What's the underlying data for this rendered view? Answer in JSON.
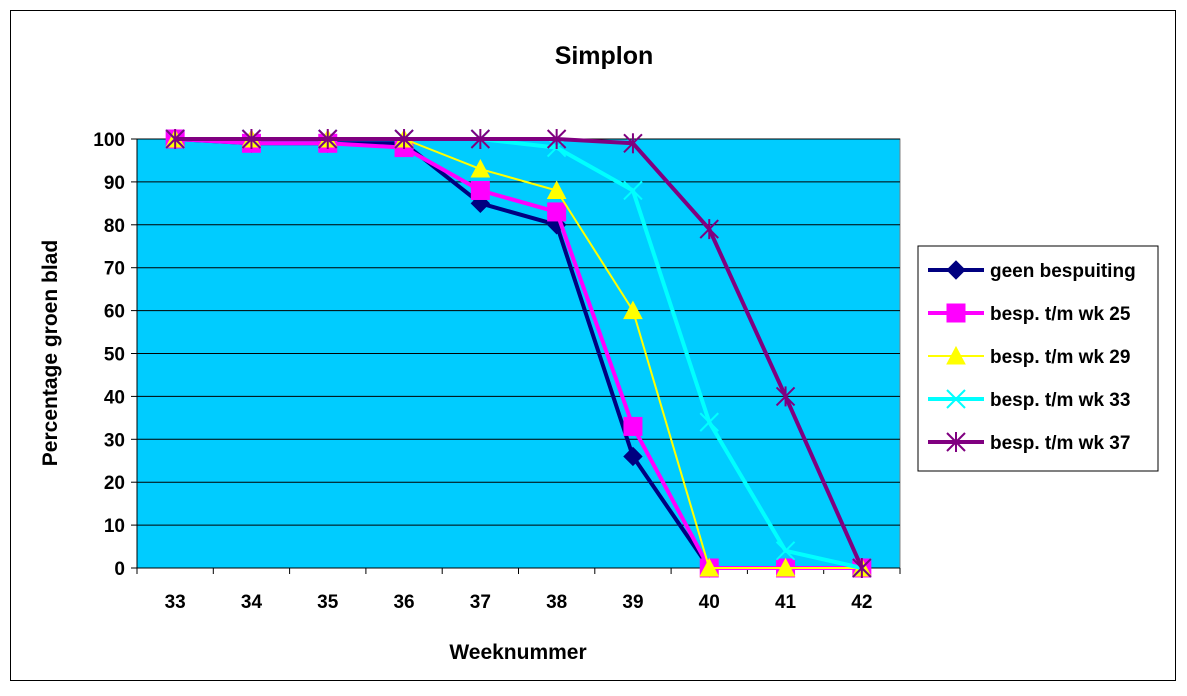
{
  "chart_data": {
    "type": "line",
    "title": "Simplon",
    "xlabel": "Weeknummer",
    "ylabel": "Percentage groen blad",
    "categories": [
      "33",
      "34",
      "35",
      "36",
      "37",
      "38",
      "39",
      "40",
      "41",
      "42"
    ],
    "ylim": [
      0,
      100
    ],
    "yticks": [
      "0",
      "10",
      "20",
      "30",
      "40",
      "50",
      "60",
      "70",
      "80",
      "90",
      "100"
    ],
    "grid": true,
    "legend_position": "right",
    "plot_background": "#00CCFF",
    "series": [
      {
        "name": "geen bespuiting",
        "color": "#000080",
        "marker": "diamond",
        "values": [
          100,
          99,
          99,
          99,
          85,
          80,
          26,
          0,
          null,
          null
        ]
      },
      {
        "name": "besp. t/m wk 25",
        "color": "#FF00FF",
        "marker": "square",
        "values": [
          100,
          99,
          99,
          98,
          88,
          83,
          33,
          0,
          0,
          0
        ]
      },
      {
        "name": "besp. t/m wk 29",
        "color": "#FFFF00",
        "marker": "triangle",
        "values": [
          100,
          100,
          100,
          100,
          93,
          88,
          60,
          0,
          0,
          0
        ]
      },
      {
        "name": "besp. t/m wk 33",
        "color": "#00FFFF",
        "marker": "x",
        "values": [
          100,
          100,
          100,
          100,
          100,
          98,
          88,
          34,
          4,
          0
        ]
      },
      {
        "name": "besp. t/m wk 37",
        "color": "#800080",
        "marker": "star",
        "values": [
          100,
          100,
          100,
          100,
          100,
          100,
          99,
          79,
          40,
          0
        ]
      }
    ]
  }
}
